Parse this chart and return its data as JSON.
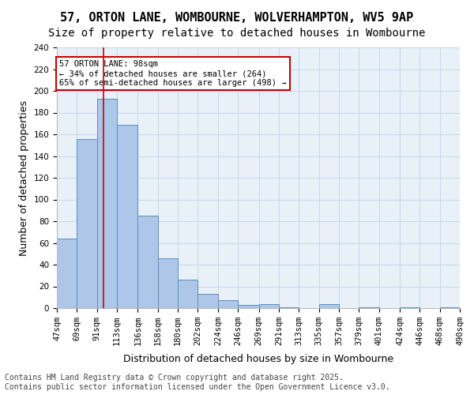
{
  "title_line1": "57, ORTON LANE, WOMBOURNE, WOLVERHAMPTON, WV5 9AP",
  "title_line2": "Size of property relative to detached houses in Wombourne",
  "xlabel": "Distribution of detached houses by size in Wombourne",
  "ylabel": "Number of detached properties",
  "footer_line1": "Contains HM Land Registry data © Crown copyright and database right 2025.",
  "footer_line2": "Contains public sector information licensed under the Open Government Licence v3.0.",
  "categories": [
    "47sqm",
    "69sqm",
    "91sqm",
    "113sqm",
    "136sqm",
    "158sqm",
    "180sqm",
    "202sqm",
    "224sqm",
    "246sqm",
    "269sqm",
    "291sqm",
    "313sqm",
    "335sqm",
    "357sqm",
    "379sqm",
    "401sqm",
    "424sqm",
    "446sqm",
    "468sqm",
    "490sqm"
  ],
  "hist_values": [
    64,
    156,
    193,
    169,
    85,
    46,
    26,
    13,
    7,
    3,
    4,
    1,
    0,
    4,
    0,
    1,
    0,
    1,
    0,
    1
  ],
  "bin_edges": [
    47,
    69,
    91,
    113,
    136,
    158,
    180,
    202,
    224,
    246,
    269,
    291,
    313,
    335,
    357,
    379,
    401,
    424,
    446,
    468,
    490
  ],
  "vline_x": 98,
  "annotation_text": "57 ORTON LANE: 98sqm\n← 34% of detached houses are smaller (264)\n65% of semi-detached houses are larger (498) →",
  "ylim": [
    0,
    240
  ],
  "yticks": [
    0,
    20,
    40,
    60,
    80,
    100,
    120,
    140,
    160,
    180,
    200,
    220,
    240
  ],
  "bar_color": "#aec6e8",
  "bar_edge_color": "#5a8fc0",
  "vline_color": "#cc0000",
  "annotation_box_color": "#cc0000",
  "grid_color": "#c8d8e8",
  "bg_color": "#e8f0f8",
  "title_fontsize": 11,
  "subtitle_fontsize": 10,
  "axis_label_fontsize": 9,
  "tick_fontsize": 7.5,
  "footer_fontsize": 7
}
